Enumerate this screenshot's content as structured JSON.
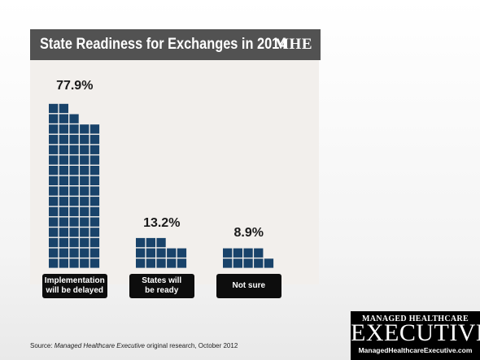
{
  "chart_data": {
    "type": "bar",
    "title": "State Readiness for Exchanges in 2014",
    "categories": [
      "Implementation\nwill be delayed",
      "States will\nbe ready",
      "Not sure"
    ],
    "values": [
      77.9,
      13.2,
      8.9
    ],
    "value_labels": [
      "77.9%",
      "13.2%",
      "8.9%"
    ],
    "xlabel": "",
    "ylabel": "",
    "ylim": [
      0,
      100
    ],
    "grid": false,
    "colors": {
      "bar": "#19436a",
      "label_bg": "#0d0d0d",
      "title_bar": "#525252"
    }
  },
  "header": {
    "logo": "MHE"
  },
  "footer": {
    "source_prefix": "Source: ",
    "source_italic": "Managed Healthcare Executive",
    "source_suffix": " original research, October 2012"
  },
  "brand": {
    "top": "MANAGED HEALTHCARE",
    "main": "EXECUTIVE",
    "url": "ManagedHealthcareExecutive.com"
  }
}
